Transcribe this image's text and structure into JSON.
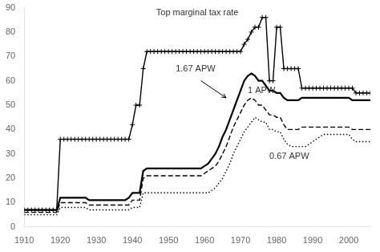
{
  "chart_data": {
    "type": "line",
    "x": [
      1910,
      1911,
      1912,
      1913,
      1914,
      1915,
      1916,
      1917,
      1918,
      1919,
      1920,
      1921,
      1922,
      1923,
      1924,
      1925,
      1926,
      1927,
      1928,
      1929,
      1930,
      1931,
      1932,
      1933,
      1934,
      1935,
      1936,
      1937,
      1938,
      1939,
      1940,
      1941,
      1942,
      1943,
      1944,
      1945,
      1946,
      1947,
      1948,
      1949,
      1950,
      1951,
      1952,
      1953,
      1954,
      1955,
      1956,
      1957,
      1958,
      1959,
      1960,
      1961,
      1962,
      1963,
      1964,
      1965,
      1966,
      1967,
      1968,
      1969,
      1970,
      1971,
      1972,
      1973,
      1974,
      1975,
      1976,
      1977,
      1978,
      1979,
      1980,
      1981,
      1982,
      1983,
      1984,
      1985,
      1986,
      1987,
      1988,
      1989,
      1990,
      1991,
      1992,
      1993,
      1994,
      1995,
      1996,
      1997,
      1998,
      1999,
      2000,
      2001,
      2002,
      2003,
      2004,
      2005,
      2006
    ],
    "xlim": [
      1910,
      2006
    ],
    "xticks": [
      1910,
      1920,
      1930,
      1940,
      1950,
      1960,
      1970,
      1980,
      1990,
      2000
    ],
    "ylim": [
      0,
      90
    ],
    "yticks": [
      0,
      10,
      20,
      30,
      40,
      50,
      60,
      70,
      80,
      90
    ],
    "grid": false,
    "series": [
      {
        "name": "Top marginal tax rate",
        "color": "#000000",
        "line_style": "solid",
        "marker": "plus",
        "values": [
          7,
          7,
          7,
          7,
          7,
          7,
          7,
          7,
          7,
          7,
          36,
          36,
          36,
          36,
          36,
          36,
          36,
          36,
          36,
          36,
          36,
          36,
          36,
          36,
          36,
          36,
          36,
          36,
          36,
          36,
          42,
          50,
          50,
          65,
          72,
          72,
          72,
          72,
          72,
          72,
          72,
          72,
          72,
          72,
          72,
          72,
          72,
          72,
          72,
          72,
          72,
          72,
          72,
          72,
          72,
          72,
          72,
          72,
          72,
          72,
          72,
          75,
          77,
          80,
          82,
          82,
          86,
          86,
          60,
          60,
          82,
          82,
          65,
          65,
          65,
          65,
          65,
          57,
          57,
          57,
          57,
          57,
          57,
          57,
          57,
          57,
          57,
          57,
          57,
          57,
          57,
          57,
          55,
          55,
          55,
          55,
          55
        ]
      },
      {
        "name": "1.67 APW",
        "color": "#000000",
        "line_style": "solid",
        "values": [
          7,
          7,
          7,
          7,
          7,
          7,
          7,
          7,
          7,
          7,
          12,
          12,
          12,
          12,
          12,
          12,
          12,
          12,
          11,
          11,
          11,
          11,
          11,
          11,
          11,
          11,
          11,
          11,
          11,
          12,
          14,
          14,
          14,
          23,
          24,
          24,
          24,
          24,
          24,
          24,
          24,
          24,
          24,
          24,
          24,
          24,
          24,
          24,
          24,
          24,
          25,
          26,
          28,
          30,
          33,
          37,
          40,
          44,
          48,
          52,
          56,
          60,
          62,
          63,
          62,
          60,
          60,
          58,
          56,
          56,
          55,
          55,
          53,
          52,
          52,
          52,
          52,
          53,
          53,
          53,
          53,
          53,
          53,
          53,
          53,
          53,
          53,
          53,
          53,
          53,
          53,
          52,
          52,
          52,
          52,
          52,
          52
        ]
      },
      {
        "name": "1 APW",
        "color": "#000000",
        "line_style": "dashed",
        "values": [
          6,
          6,
          6,
          6,
          6,
          6,
          6,
          6,
          6,
          6,
          10,
          10,
          10,
          10,
          10,
          10,
          10,
          10,
          9,
          9,
          9,
          9,
          9,
          9,
          9,
          9,
          9,
          9,
          9,
          9,
          11,
          11,
          11,
          20,
          21,
          21,
          21,
          21,
          21,
          21,
          21,
          21,
          21,
          21,
          21,
          21,
          21,
          21,
          21,
          21,
          22,
          23,
          24,
          25,
          27,
          30,
          33,
          37,
          41,
          44,
          47,
          50,
          52,
          53,
          52,
          50,
          50,
          48,
          46,
          46,
          45,
          45,
          42,
          40,
          40,
          40,
          40,
          41,
          41,
          41,
          41,
          41,
          41,
          41,
          41,
          41,
          41,
          41,
          41,
          41,
          41,
          40,
          40,
          40,
          40,
          40,
          40
        ]
      },
      {
        "name": "0.67 APW",
        "color": "#000000",
        "line_style": "dotted",
        "values": [
          5,
          5,
          5,
          5,
          5,
          5,
          5,
          5,
          5,
          5,
          8,
          8,
          8,
          8,
          8,
          8,
          8,
          8,
          7,
          7,
          7,
          7,
          7,
          7,
          7,
          7,
          7,
          7,
          7,
          7,
          8,
          8,
          8,
          14,
          14,
          14,
          14,
          14,
          14,
          14,
          14,
          14,
          14,
          14,
          14,
          14,
          14,
          14,
          14,
          14,
          14,
          14,
          15,
          16,
          18,
          20,
          23,
          26,
          30,
          33,
          36,
          39,
          41,
          43,
          45,
          44,
          43,
          43,
          40,
          40,
          39,
          39,
          36,
          34,
          33,
          33,
          33,
          33,
          33,
          34,
          35,
          36,
          37,
          38,
          38,
          38,
          38,
          38,
          38,
          38,
          38,
          36,
          35,
          35,
          35,
          35,
          35
        ]
      }
    ],
    "annotations": [
      {
        "text": "Top marginal tax rate",
        "x": 1958,
        "y": 86
      },
      {
        "text": "1.67 APW",
        "x": 1952,
        "y": 63
      },
      {
        "text": "1 APW",
        "x": 1972,
        "y": 54
      },
      {
        "text": "0.67 APW",
        "x": 1978,
        "y": 27
      }
    ],
    "arrows": [
      {
        "x_start": 1959,
        "y_start": 60,
        "x_end": 1966,
        "y_end": 53
      }
    ]
  }
}
